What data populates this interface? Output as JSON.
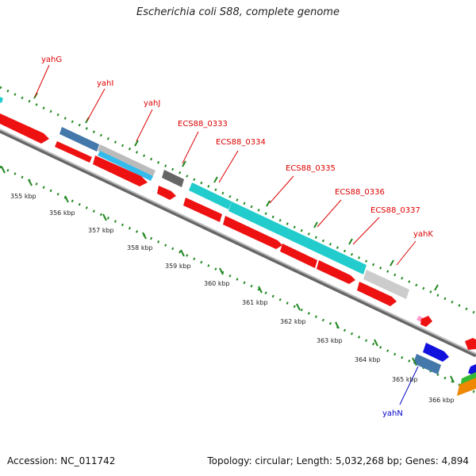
{
  "title": "Escherichia coli S88, complete genome",
  "footer": {
    "accession": "Accession: NC_011742",
    "summary": "Topology: circular; Length: 5,032,268 bp; Genes: 4,894"
  },
  "colors": {
    "backbone": "#888888",
    "tick": "#228822",
    "label_red": "#dd0000",
    "label_blue": "#0000cc"
  },
  "ticks": [
    {
      "label": "355 kbp"
    },
    {
      "label": "356 kbp"
    },
    {
      "label": "357 kbp"
    },
    {
      "label": "358 kbp"
    },
    {
      "label": "359 kbp"
    },
    {
      "label": "360 kbp"
    },
    {
      "label": "361 kbp"
    },
    {
      "label": "362 kbp"
    },
    {
      "label": "363 kbp"
    },
    {
      "label": "364 kbp"
    },
    {
      "label": "365 kbp"
    },
    {
      "label": "366 kbp"
    }
  ],
  "gene_labels": [
    {
      "name": "yahG",
      "color": "#dd0000"
    },
    {
      "name": "yahI",
      "color": "#dd0000"
    },
    {
      "name": "yahJ",
      "color": "#dd0000"
    },
    {
      "name": "ECS88_0333",
      "color": "#dd0000"
    },
    {
      "name": "ECS88_0334",
      "color": "#dd0000"
    },
    {
      "name": "ECS88_0335",
      "color": "#dd0000"
    },
    {
      "name": "ECS88_0336",
      "color": "#dd0000"
    },
    {
      "name": "ECS88_0337",
      "color": "#dd0000"
    },
    {
      "name": "yahK",
      "color": "#dd0000"
    },
    {
      "name": "yahN",
      "color": "#0000cc"
    }
  ]
}
